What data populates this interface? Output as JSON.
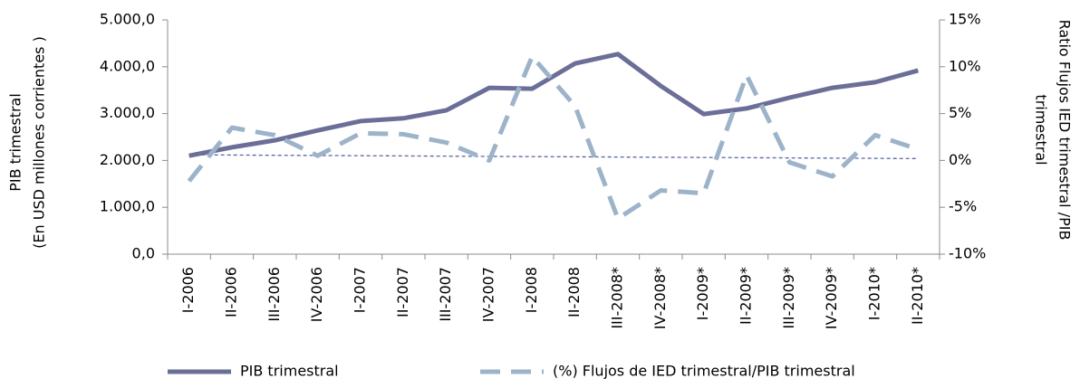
{
  "chart_data": {
    "type": "line",
    "categories": [
      "I-2006",
      "II-2006",
      "III-2006",
      "IV-2006",
      "I-2007",
      "II-2007",
      "III-2007",
      "IV-2007",
      "I-2008",
      "II-2008",
      "III-2008*",
      "IV-2008*",
      "I-2009*",
      "II-2009*",
      "III-2009*",
      "IV-2009*",
      "I-2010*",
      "II-2010*"
    ],
    "series": [
      {
        "name": "PIB trimestral",
        "color": "#6b6f98",
        "style": "solid",
        "values": [
          2100,
          2280,
          2430,
          2640,
          2840,
          2900,
          3070,
          3550,
          3530,
          4070,
          4270,
          3590,
          2990,
          3110,
          3340,
          3550,
          3670,
          3920
        ]
      },
      {
        "name": "(%) Flujos de IED trimestral/PIB trimestral",
        "color": "#9db3c9",
        "style": "dashed",
        "axis": "y2",
        "values": [
          -2.2,
          3.5,
          2.7,
          0.5,
          2.9,
          2.8,
          1.9,
          0,
          11.1,
          5.8,
          -6.2,
          -3.2,
          -3.5,
          9.1,
          -0.2,
          -1.7,
          2.7,
          1.2
        ]
      }
    ],
    "trendline": {
      "axis": "y2",
      "color": "#5a65a3",
      "values": [
        0.6,
        0.2
      ]
    },
    "ylabel": [
      "PIB trimestral",
      "(En USD millones corrientes )"
    ],
    "y2label": [
      "Ratio Flujos  IED trimestral /PIB",
      "trimestral"
    ],
    "ylim": [
      0,
      5000
    ],
    "yticks": [
      {
        "value": 0,
        "label": "0,0"
      },
      {
        "value": 1000,
        "label": "1.000,0"
      },
      {
        "value": 2000,
        "label": "2.000,0"
      },
      {
        "value": 3000,
        "label": "3.000,0"
      },
      {
        "value": 4000,
        "label": "4.000,0"
      },
      {
        "value": 5000,
        "label": "5.000,0"
      }
    ],
    "y2lim": [
      -10,
      15
    ],
    "y2ticks": [
      {
        "value": -10,
        "label": "-10%"
      },
      {
        "value": -5,
        "label": "-5%"
      },
      {
        "value": 0,
        "label": "0%"
      },
      {
        "value": 5,
        "label": "5%"
      },
      {
        "value": 10,
        "label": "10%"
      },
      {
        "value": 15,
        "label": "15%"
      }
    ],
    "legend": "bottom"
  }
}
